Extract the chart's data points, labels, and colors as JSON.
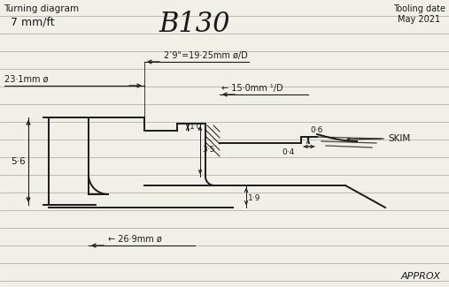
{
  "bg_color": "#f0efe8",
  "line_color": "#1a1a1a",
  "ruled_lines_color": "#b8b8b0",
  "title_left": "Turning diagram",
  "subtitle_left": "  7 mm/ft",
  "title_center": "B130",
  "title_right": "Tooling date\nMay 2021",
  "footer_right": "APPROX",
  "dim_19_25": "2’9\"=19·25mm ø/D",
  "dim_15_0": "← 15·0mm ¹/D",
  "dim_23_1": "23·1mm ø",
  "dim_26_9": "← 26·9mm ø",
  "dim_0_6": "0·6",
  "dim_0_4": "0·4",
  "dim_1_0": "1·0",
  "dim_3_5": "3·5",
  "dim_1_9": "1·9",
  "dim_5_6": "5·6",
  "label_skim": "SKIM"
}
